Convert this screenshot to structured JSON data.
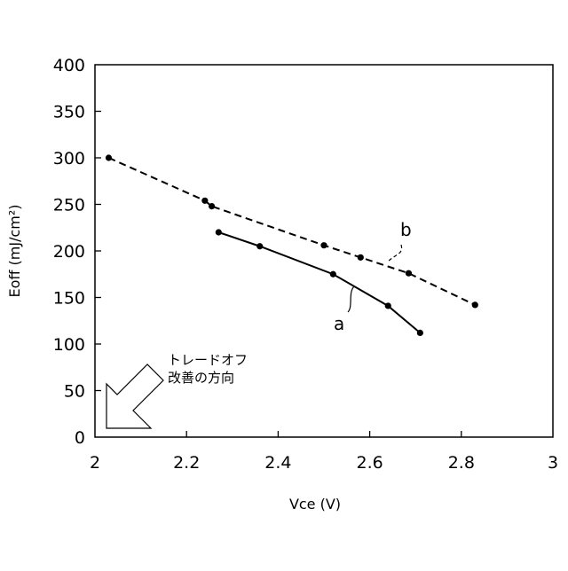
{
  "chart_data": {
    "type": "line",
    "title": "",
    "xlabel": "Vce (V)",
    "ylabel": "Eoff (mJ/cm²)",
    "xlim": [
      2,
      3
    ],
    "ylim": [
      0,
      400
    ],
    "x_ticks": [
      2,
      2.2,
      2.4,
      2.6,
      2.8,
      3
    ],
    "x_tick_labels": [
      "2",
      "2.2",
      "2.4",
      "2.6",
      "2.8",
      "3"
    ],
    "y_ticks": [
      0,
      50,
      100,
      150,
      200,
      250,
      300,
      350,
      400
    ],
    "y_tick_labels": [
      "0",
      "50",
      "100",
      "150",
      "200",
      "250",
      "300",
      "350",
      "400"
    ],
    "grid": false,
    "series": [
      {
        "name": "a",
        "line_style": "solid",
        "color": "#000000",
        "points": [
          {
            "x": 2.27,
            "y": 220
          },
          {
            "x": 2.36,
            "y": 205
          },
          {
            "x": 2.52,
            "y": 175
          },
          {
            "x": 2.64,
            "y": 141
          },
          {
            "x": 2.71,
            "y": 112
          }
        ]
      },
      {
        "name": "b",
        "line_style": "dashed",
        "color": "#000000",
        "points": [
          {
            "x": 2.03,
            "y": 300
          },
          {
            "x": 2.24,
            "y": 254
          },
          {
            "x": 2.255,
            "y": 248
          },
          {
            "x": 2.5,
            "y": 206
          },
          {
            "x": 2.58,
            "y": 193
          },
          {
            "x": 2.685,
            "y": 176
          },
          {
            "x": 2.83,
            "y": 142
          }
        ]
      }
    ],
    "annotations": [
      {
        "line1": "トレードオフ",
        "line2": "改善の方向",
        "icon": "arrow-down-left-icon"
      }
    ]
  }
}
